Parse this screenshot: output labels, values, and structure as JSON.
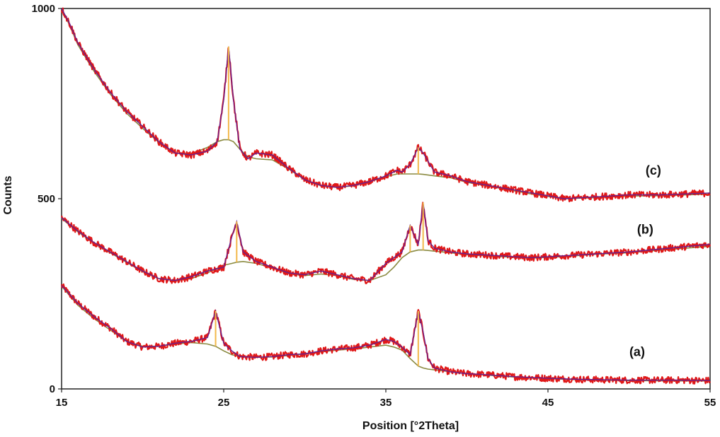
{
  "chart_data": {
    "type": "line",
    "title": "",
    "xlabel": "Position [°2Theta]",
    "ylabel": "Counts",
    "xlim": [
      15,
      55
    ],
    "ylim": [
      0,
      1000
    ],
    "x_ticks": [
      "15",
      "25",
      "35",
      "45",
      "55"
    ],
    "y_ticks": [
      "0",
      "500",
      "1000"
    ],
    "grid": false,
    "legend": "none",
    "colors": {
      "data": "#e01818",
      "fit": "#6a1f8a",
      "background": "#8a8a40",
      "peak_marker": "#f2b84a"
    },
    "series": [
      {
        "label": "(a)",
        "x": [
          15,
          16,
          17,
          18,
          19,
          20,
          21,
          22,
          23,
          24,
          24.5,
          25,
          25.5,
          26,
          27,
          28,
          29,
          30,
          31,
          32,
          33,
          34,
          35,
          35.5,
          36,
          36.5,
          37,
          37.3,
          37.6,
          38,
          39,
          40,
          41,
          42,
          43,
          45,
          47,
          50,
          53,
          55
        ],
        "y": [
          272,
          225,
          190,
          160,
          125,
          110,
          112,
          120,
          125,
          135,
          205,
          120,
          100,
          85,
          83,
          85,
          90,
          92,
          100,
          105,
          108,
          115,
          130,
          125,
          110,
          90,
          205,
          150,
          80,
          55,
          45,
          40,
          38,
          35,
          32,
          28,
          25,
          23,
          23,
          22
        ],
        "baseline": [
          270,
          220,
          185,
          155,
          125,
          112,
          112,
          118,
          122,
          118,
          112,
          100,
          90,
          85,
          83,
          84,
          88,
          92,
          98,
          102,
          105,
          110,
          115,
          110,
          102,
          80,
          60,
          55,
          52,
          50,
          45,
          40,
          37,
          34,
          31,
          27,
          24,
          22,
          21,
          21
        ],
        "peaks": [
          24.5,
          37.0
        ]
      },
      {
        "label": "(b)",
        "x": [
          15,
          16,
          17,
          18,
          19,
          20,
          21,
          22,
          23,
          24,
          25,
          25.5,
          25.8,
          26.2,
          27,
          28,
          29,
          30,
          31,
          32,
          33,
          34,
          35,
          35.5,
          36,
          36.5,
          37,
          37.3,
          37.6,
          38,
          39,
          40,
          42,
          44,
          46,
          48,
          50,
          52,
          55
        ],
        "y": [
          450,
          415,
          385,
          360,
          335,
          310,
          290,
          285,
          295,
          310,
          320,
          400,
          440,
          360,
          335,
          320,
          305,
          300,
          310,
          300,
          290,
          285,
          330,
          345,
          360,
          430,
          380,
          490,
          390,
          370,
          360,
          355,
          350,
          345,
          350,
          355,
          360,
          368,
          380
        ],
        "baseline": [
          448,
          413,
          383,
          358,
          333,
          308,
          290,
          285,
          290,
          305,
          325,
          330,
          333,
          335,
          330,
          318,
          303,
          298,
          302,
          298,
          288,
          285,
          300,
          320,
          345,
          360,
          365,
          365,
          364,
          362,
          358,
          353,
          348,
          344,
          348,
          354,
          358,
          365,
          375
        ],
        "peaks": [
          25.8,
          36.5,
          37.3
        ]
      },
      {
        "label": "(c)",
        "x": [
          15,
          15.5,
          16,
          17,
          18,
          19,
          20,
          21,
          22,
          23,
          24,
          24.6,
          25,
          25.3,
          25.6,
          26,
          26.5,
          27,
          28,
          29,
          30,
          31,
          32,
          33,
          34,
          35,
          35.7,
          36,
          36.5,
          37,
          37.3,
          38,
          39,
          40,
          42,
          44,
          46,
          48,
          50,
          52,
          55
        ],
        "y": [
          1000,
          960,
          910,
          840,
          780,
          730,
          690,
          650,
          620,
          615,
          625,
          650,
          760,
          900,
          760,
          630,
          605,
          620,
          615,
          580,
          550,
          535,
          530,
          535,
          545,
          560,
          575,
          570,
          590,
          635,
          620,
          570,
          560,
          545,
          530,
          515,
          500,
          505,
          510,
          510,
          515
        ],
        "baseline": [
          1000,
          955,
          905,
          835,
          775,
          725,
          685,
          648,
          620,
          618,
          635,
          650,
          655,
          655,
          650,
          630,
          610,
          605,
          602,
          578,
          550,
          534,
          530,
          534,
          545,
          558,
          565,
          565,
          565,
          565,
          564,
          560,
          555,
          543,
          528,
          512,
          500,
          503,
          507,
          508,
          512
        ],
        "peaks": [
          25.3,
          37.0
        ]
      }
    ]
  }
}
